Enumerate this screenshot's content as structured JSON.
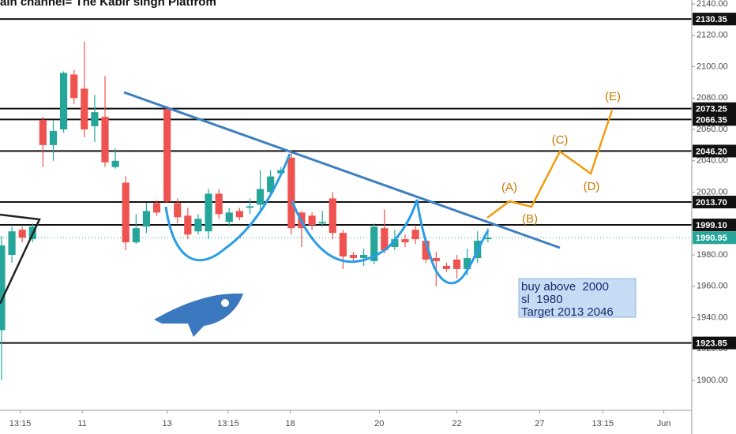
{
  "chart_data": {
    "type": "candlestick",
    "title": "ain channel= The Kabir singh Platfrom",
    "up_color": "#26a69a",
    "down_color": "#ef5350",
    "open": [
      1932,
      1980,
      1996,
      1990,
      2066,
      2050,
      2060,
      2095,
      2086,
      2062,
      2068,
      2036,
      2026,
      1988,
      1998,
      2013,
      2073,
      2013,
      2005,
      1995,
      1995,
      2019,
      2001,
      2008,
      2010,
      2012,
      2020,
      2032,
      2042,
      2007,
      2005,
      2000,
      2016,
      1994,
      1980,
      1978,
      1976,
      1997,
      1985,
      1990,
      1996,
      1989,
      1978,
      1973,
      1977,
      1971,
      1978,
      1990
    ],
    "high": [
      1992,
      1998,
      1998,
      2000,
      2068,
      2066,
      2097,
      2098,
      2116,
      2082,
      2094,
      2048,
      2030,
      2006,
      2013,
      2015,
      2075,
      2016,
      2010,
      2006,
      2022,
      2022,
      2010,
      2010,
      2016,
      2034,
      2034,
      2036,
      2047,
      2008,
      2007,
      2008,
      2020,
      1996,
      1982,
      1984,
      2000,
      2009,
      1996,
      1993,
      1999,
      1991,
      1982,
      1975,
      1980,
      1984,
      1995,
      1997
    ],
    "low": [
      1900,
      1975,
      1988,
      1988,
      2036,
      2040,
      2058,
      2076,
      2055,
      2052,
      2036,
      2035,
      1983,
      1987,
      1994,
      2005,
      2013,
      2000,
      1990,
      1993,
      1990,
      2003,
      1998,
      2002,
      2006,
      2008,
      2018,
      2030,
      1993,
      1985,
      1996,
      1998,
      1990,
      1971,
      1975,
      1973,
      1974,
      1981,
      1983,
      1985,
      1987,
      1975,
      1960,
      1969,
      1965,
      1967,
      1975,
      1988
    ],
    "close": [
      1986,
      1995,
      1991,
      1998,
      2050,
      2059,
      2096,
      2080,
      2060,
      2071,
      2039,
      2040,
      1988,
      1997,
      2008,
      2007,
      2014,
      2004,
      1993,
      2003,
      2019,
      2006,
      2007,
      2004,
      2011,
      2022,
      2030,
      2034,
      1997,
      1997,
      1999,
      2001,
      1994,
      1979,
      1978,
      1980,
      1998,
      1983,
      1990,
      1988,
      1990,
      1977,
      1976,
      1971,
      1971,
      1978,
      1989,
      1991
    ],
    "xlim": [
      -0.15,
      66.7
    ],
    "xticks": [
      {
        "value": 1.8,
        "label": "13:15"
      },
      {
        "value": 7.8,
        "label": "11"
      },
      {
        "value": 16,
        "label": "13"
      },
      {
        "value": 21.9,
        "label": "13:15"
      },
      {
        "value": 27.9,
        "label": "18"
      },
      {
        "value": 36.5,
        "label": "20"
      },
      {
        "value": 44,
        "label": "22"
      },
      {
        "value": 52,
        "label": "27"
      },
      {
        "value": 58.1,
        "label": "13:15"
      },
      {
        "value": 64,
        "label": "Jun"
      }
    ],
    "ylim": [
      1880.9,
      2142.5
    ],
    "yticks": [
      {
        "value": 1900,
        "label": "1900.00"
      },
      {
        "value": 1920,
        "label": "1920.00"
      },
      {
        "value": 1940,
        "label": "1940.00"
      },
      {
        "value": 1960,
        "label": "1960.00"
      },
      {
        "value": 1980,
        "label": "1980.00"
      },
      {
        "value": 2000,
        "label": "2000.00"
      },
      {
        "value": 2020,
        "label": "2020.00"
      },
      {
        "value": 2040,
        "label": "2040.00"
      },
      {
        "value": 2060,
        "label": "2060.00"
      },
      {
        "value": 2080,
        "label": "2080.00"
      },
      {
        "value": 2100,
        "label": "2100.00"
      },
      {
        "value": 2120,
        "label": "2120.00"
      },
      {
        "value": 2140,
        "label": "2140.00"
      }
    ],
    "levels": [
      2130.35,
      2073.25,
      2066.35,
      {
        "value": 2046.2,
        "label": "2046.20"
      },
      {
        "value": 2013.7,
        "label": "2013.70"
      },
      {
        "value": 1999.1,
        "label": "1999.10"
      },
      1923.85
    ],
    "last_price": 1990.95,
    "notes": [
      "buy above  2000",
      "sl  1980",
      "Target 2013 2046"
    ],
    "annotations": [
      "(A)",
      "(B)",
      "(C)",
      "(D)",
      "(E)"
    ]
  }
}
